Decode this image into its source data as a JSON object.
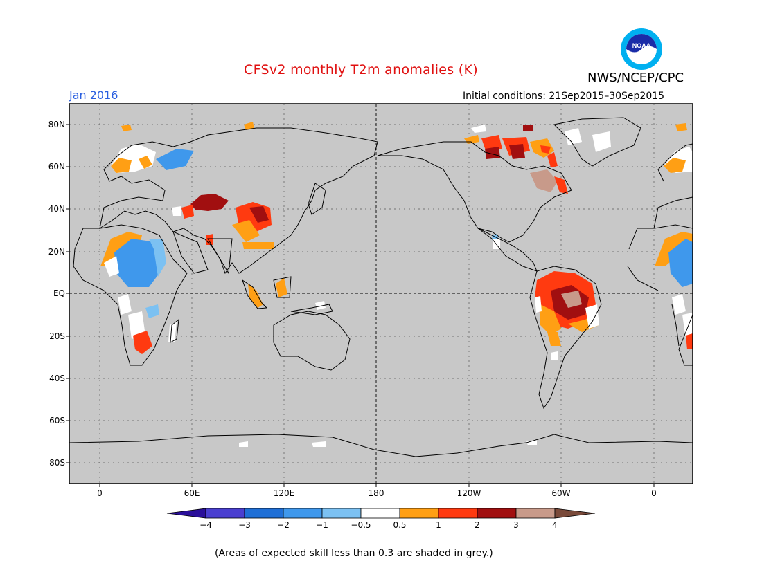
{
  "header": {
    "title": "CFSv2 monthly T2m anomalies (K)",
    "valid_month": "Jan 2016",
    "initial_conditions": "Initial conditions: 21Sep2015–30Sep2015",
    "organization": "NWS/NCEP/CPC",
    "logo_text": "NOAA"
  },
  "axes": {
    "lat_labels": [
      "80N",
      "60N",
      "40N",
      "20N",
      "EQ",
      "20S",
      "40S",
      "60S",
      "80S"
    ],
    "lon_labels": [
      "0",
      "60E",
      "120E",
      "180",
      "120W",
      "60W",
      "0"
    ]
  },
  "colorbar": {
    "tick_labels": [
      "−4",
      "−3",
      "−2",
      "−1",
      "−0.5",
      "0.5",
      "1",
      "2",
      "3",
      "4"
    ],
    "colors": [
      "#2a0f9a",
      "#4a3fd0",
      "#1f6fd6",
      "#3f98ec",
      "#7cc1f2",
      "#ffffff",
      "#ff9f14",
      "#ff3a10",
      "#a10f10",
      "#c89a8a",
      "#7a4a3a"
    ]
  },
  "footnote": "(Areas of expected skill less than 0.3 are shaded in grey.)",
  "colors": {
    "land_grey": "#c8c8c8",
    "title_red": "#e01010",
    "month_blue": "#2a5fe0"
  }
}
